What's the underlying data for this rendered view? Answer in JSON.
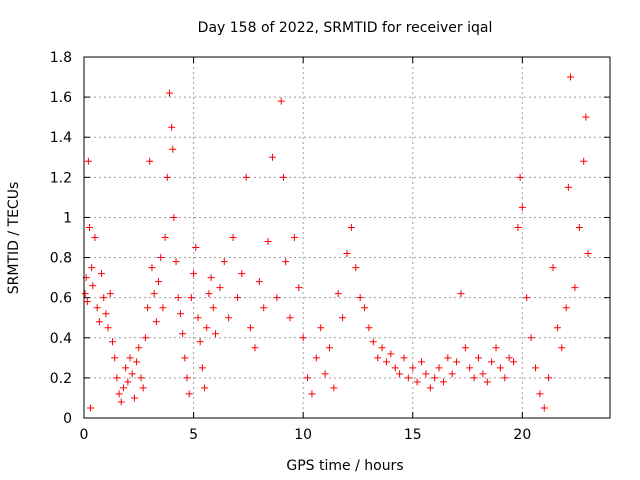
{
  "chart_data": {
    "type": "scatter",
    "title": "Day 158 of 2022, SRMTID for receiver iqal",
    "xlabel": "GPS time / hours",
    "ylabel": "SRMTID / TECUs",
    "xlim": [
      0,
      24
    ],
    "ylim": [
      0,
      1.8
    ],
    "x_ticks": [
      0,
      5,
      10,
      15,
      20
    ],
    "x_tick_labels": [
      "0",
      "5",
      "10",
      "15",
      "20"
    ],
    "y_ticks": [
      0,
      0.2,
      0.4,
      0.6,
      0.8,
      1.0,
      1.2,
      1.4,
      1.6,
      1.8
    ],
    "y_tick_labels": [
      "0",
      "0.2",
      "0.4",
      "0.6",
      "0.8",
      "1",
      "1.2",
      "1.4",
      "1.6",
      "1.8"
    ],
    "grid": true,
    "marker": "+",
    "color": "#ff0000",
    "series": [
      {
        "name": "SRMTID",
        "points": [
          [
            0.05,
            0.62
          ],
          [
            0.1,
            0.7
          ],
          [
            0.15,
            0.58
          ],
          [
            0.2,
            1.28
          ],
          [
            0.25,
            0.95
          ],
          [
            0.3,
            0.05
          ],
          [
            0.35,
            0.75
          ],
          [
            0.4,
            0.66
          ],
          [
            0.5,
            0.9
          ],
          [
            0.6,
            0.55
          ],
          [
            0.7,
            0.48
          ],
          [
            0.8,
            0.72
          ],
          [
            0.9,
            0.6
          ],
          [
            1.0,
            0.52
          ],
          [
            1.1,
            0.45
          ],
          [
            1.2,
            0.62
          ],
          [
            1.3,
            0.38
          ],
          [
            1.4,
            0.3
          ],
          [
            1.5,
            0.2
          ],
          [
            1.6,
            0.12
          ],
          [
            1.7,
            0.08
          ],
          [
            1.8,
            0.15
          ],
          [
            1.9,
            0.25
          ],
          [
            2.0,
            0.18
          ],
          [
            2.1,
            0.3
          ],
          [
            2.2,
            0.22
          ],
          [
            2.3,
            0.1
          ],
          [
            2.4,
            0.28
          ],
          [
            2.5,
            0.35
          ],
          [
            2.6,
            0.2
          ],
          [
            2.7,
            0.15
          ],
          [
            2.8,
            0.4
          ],
          [
            2.9,
            0.55
          ],
          [
            3.0,
            1.28
          ],
          [
            3.1,
            0.75
          ],
          [
            3.2,
            0.62
          ],
          [
            3.3,
            0.48
          ],
          [
            3.4,
            0.68
          ],
          [
            3.5,
            0.8
          ],
          [
            3.6,
            0.55
          ],
          [
            3.7,
            0.9
          ],
          [
            3.8,
            1.2
          ],
          [
            3.9,
            1.62
          ],
          [
            4.0,
            1.45
          ],
          [
            4.05,
            1.34
          ],
          [
            4.1,
            1.0
          ],
          [
            4.2,
            0.78
          ],
          [
            4.3,
            0.6
          ],
          [
            4.4,
            0.52
          ],
          [
            4.5,
            0.42
          ],
          [
            4.6,
            0.3
          ],
          [
            4.7,
            0.2
          ],
          [
            4.8,
            0.12
          ],
          [
            4.9,
            0.6
          ],
          [
            5.0,
            0.72
          ],
          [
            5.1,
            0.85
          ],
          [
            5.2,
            0.5
          ],
          [
            5.3,
            0.38
          ],
          [
            5.4,
            0.25
          ],
          [
            5.5,
            0.15
          ],
          [
            5.6,
            0.45
          ],
          [
            5.7,
            0.62
          ],
          [
            5.8,
            0.7
          ],
          [
            5.9,
            0.55
          ],
          [
            6.0,
            0.42
          ],
          [
            6.2,
            0.65
          ],
          [
            6.4,
            0.78
          ],
          [
            6.6,
            0.5
          ],
          [
            6.8,
            0.9
          ],
          [
            7.0,
            0.6
          ],
          [
            7.2,
            0.72
          ],
          [
            7.4,
            1.2
          ],
          [
            7.6,
            0.45
          ],
          [
            7.8,
            0.35
          ],
          [
            8.0,
            0.68
          ],
          [
            8.2,
            0.55
          ],
          [
            8.4,
            0.88
          ],
          [
            8.6,
            1.3
          ],
          [
            8.8,
            0.6
          ],
          [
            9.0,
            1.58
          ],
          [
            9.1,
            1.2
          ],
          [
            9.2,
            0.78
          ],
          [
            9.4,
            0.5
          ],
          [
            9.6,
            0.9
          ],
          [
            9.8,
            0.65
          ],
          [
            10.0,
            0.4
          ],
          [
            10.2,
            0.2
          ],
          [
            10.4,
            0.12
          ],
          [
            10.6,
            0.3
          ],
          [
            10.8,
            0.45
          ],
          [
            11.0,
            0.22
          ],
          [
            11.2,
            0.35
          ],
          [
            11.4,
            0.15
          ],
          [
            11.6,
            0.62
          ],
          [
            11.8,
            0.5
          ],
          [
            12.0,
            0.82
          ],
          [
            12.2,
            0.95
          ],
          [
            12.4,
            0.75
          ],
          [
            12.6,
            0.6
          ],
          [
            12.8,
            0.55
          ],
          [
            13.0,
            0.45
          ],
          [
            13.2,
            0.38
          ],
          [
            13.4,
            0.3
          ],
          [
            13.6,
            0.35
          ],
          [
            13.8,
            0.28
          ],
          [
            14.0,
            0.32
          ],
          [
            14.2,
            0.25
          ],
          [
            14.4,
            0.22
          ],
          [
            14.6,
            0.3
          ],
          [
            14.8,
            0.2
          ],
          [
            15.0,
            0.25
          ],
          [
            15.2,
            0.18
          ],
          [
            15.4,
            0.28
          ],
          [
            15.6,
            0.22
          ],
          [
            15.8,
            0.15
          ],
          [
            16.0,
            0.2
          ],
          [
            16.2,
            0.25
          ],
          [
            16.4,
            0.18
          ],
          [
            16.6,
            0.3
          ],
          [
            16.8,
            0.22
          ],
          [
            17.0,
            0.28
          ],
          [
            17.2,
            0.62
          ],
          [
            17.4,
            0.35
          ],
          [
            17.6,
            0.25
          ],
          [
            17.8,
            0.2
          ],
          [
            18.0,
            0.3
          ],
          [
            18.2,
            0.22
          ],
          [
            18.4,
            0.18
          ],
          [
            18.6,
            0.28
          ],
          [
            18.8,
            0.35
          ],
          [
            19.0,
            0.25
          ],
          [
            19.2,
            0.2
          ],
          [
            19.4,
            0.3
          ],
          [
            19.6,
            0.28
          ],
          [
            19.8,
            0.95
          ],
          [
            19.9,
            1.2
          ],
          [
            20.0,
            1.05
          ],
          [
            20.2,
            0.6
          ],
          [
            20.4,
            0.4
          ],
          [
            20.6,
            0.25
          ],
          [
            20.8,
            0.12
          ],
          [
            21.0,
            0.05
          ],
          [
            21.2,
            0.2
          ],
          [
            21.4,
            0.75
          ],
          [
            21.6,
            0.45
          ],
          [
            21.8,
            0.35
          ],
          [
            22.0,
            0.55
          ],
          [
            22.1,
            1.15
          ],
          [
            22.2,
            1.7
          ],
          [
            22.4,
            0.65
          ],
          [
            22.6,
            0.95
          ],
          [
            22.8,
            1.28
          ],
          [
            22.9,
            1.5
          ],
          [
            23.0,
            0.82
          ]
        ]
      }
    ]
  }
}
